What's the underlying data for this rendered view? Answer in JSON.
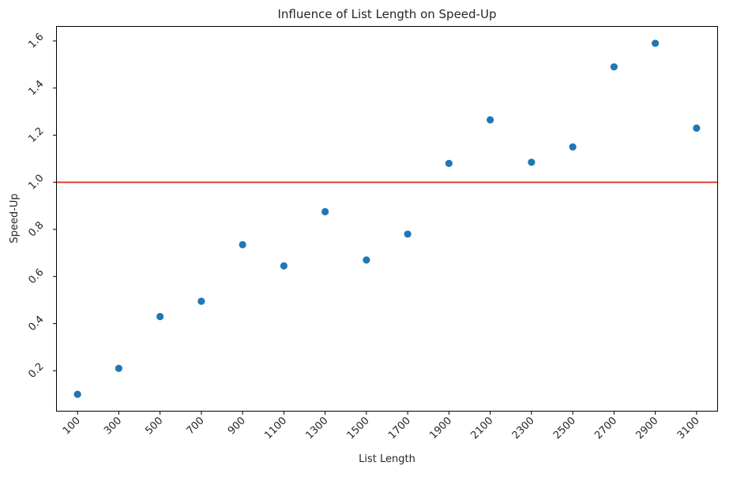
{
  "chart_data": {
    "type": "scatter",
    "title": "Influence of List Length on Speed-Up",
    "xlabel": "List Length",
    "ylabel": "Speed-Up",
    "x": [
      100,
      300,
      500,
      700,
      900,
      1100,
      1300,
      1500,
      1700,
      1900,
      2100,
      2300,
      2500,
      2700,
      2900,
      3100
    ],
    "y": [
      0.1,
      0.21,
      0.43,
      0.495,
      0.735,
      0.645,
      0.875,
      0.67,
      0.78,
      1.08,
      1.265,
      1.085,
      1.15,
      1.49,
      1.59,
      1.23
    ],
    "xlim": [
      0,
      3200
    ],
    "ylim": [
      0.03,
      1.66
    ],
    "xticks": [
      100,
      300,
      500,
      700,
      900,
      1100,
      1300,
      1500,
      1700,
      1900,
      2100,
      2300,
      2500,
      2700,
      2900,
      3100
    ],
    "xtick_labels": [
      "100",
      "300",
      "500",
      "700",
      "900",
      "1100",
      "1300",
      "1500",
      "1700",
      "1900",
      "2100",
      "2300",
      "2500",
      "2700",
      "2900",
      "3100"
    ],
    "yticks": [
      0.2,
      0.4,
      0.6,
      0.8,
      1.0,
      1.2,
      1.4,
      1.6
    ],
    "ytick_labels": [
      "0.2",
      "0.4",
      "0.6",
      "0.8",
      "1.0",
      "1.2",
      "1.4",
      "1.6"
    ],
    "reference_line": {
      "orientation": "horizontal",
      "y": 1.0,
      "color": "#e8403c"
    },
    "marker_color": "#1f77b4",
    "grid": false,
    "legend": "none"
  }
}
